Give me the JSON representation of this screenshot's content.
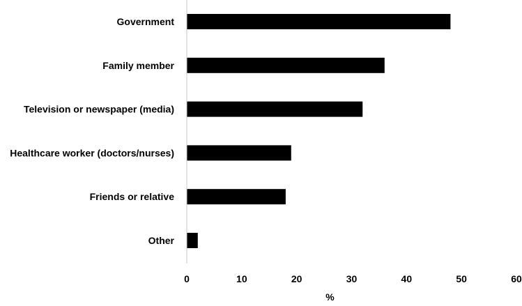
{
  "chart_data": {
    "type": "bar",
    "orientation": "horizontal",
    "title": "",
    "xlabel": "%",
    "ylabel": "",
    "categories": [
      "Government",
      "Family member",
      "Television or newspaper (media)",
      "Healthcare worker (doctors/nurses)",
      "Friends or relative",
      "Other"
    ],
    "values": [
      48,
      36,
      32,
      19,
      18,
      2
    ],
    "xlim": [
      0,
      60
    ],
    "xticks": [
      0,
      10,
      20,
      30,
      40,
      50,
      60
    ],
    "grid": false,
    "legend": "none",
    "colors": {
      "bar": "#000000",
      "axis": "#c8c8c8",
      "text": "#000000"
    }
  }
}
